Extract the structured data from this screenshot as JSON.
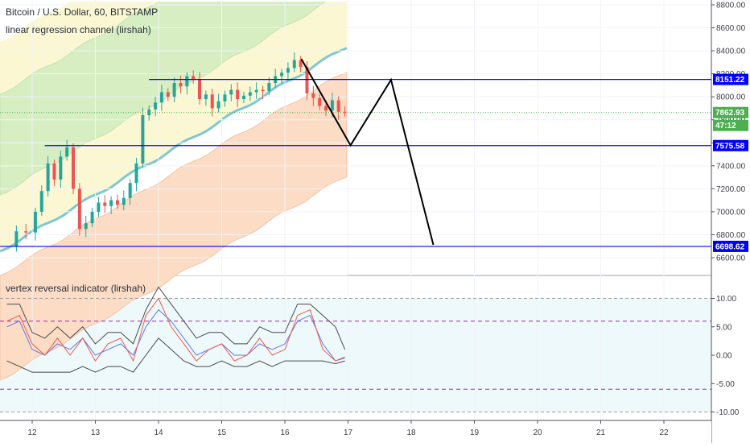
{
  "header": {
    "symbol_line": "Bitcoin / U.S. Dollar, 60, BITSTAMP",
    "indicator_line": "linear regression channel (lirshah)"
  },
  "sub_pane": {
    "title": "vertex reversal indicator (lirshah)"
  },
  "colors": {
    "up": "#26a69a",
    "down": "#ef5350",
    "hline": "#0000ff",
    "regression": "#7ec8d4",
    "upper_band": "#d6eec2",
    "mid_band": "#fbf7d2",
    "lower_band": "#fcdcc4",
    "zigzag": "#000000",
    "osc_blue": "#5b78f0",
    "osc_red": "#f15a4a",
    "osc_envelope": "#4a4a4a",
    "level_dash": "#9c27b0",
    "price_line": "#4caf50"
  },
  "price_tags": {
    "current": "7862.93",
    "countdown": "47:12"
  },
  "chart_data": [
    {
      "type": "candlestick",
      "title": "Bitcoin / U.S. Dollar, 60, BITSTAMP",
      "x_labels": [
        "12",
        "13",
        "14",
        "15",
        "16",
        "17",
        "18",
        "19",
        "20",
        "21",
        "22"
      ],
      "y_ticks": [
        "8800.00",
        "8600.00",
        "8400.00",
        "8200.00",
        "8000.00",
        "7800.00",
        "7600.00",
        "7400.00",
        "7200.00",
        "7000.00",
        "6800.00",
        "6600.00"
      ],
      "ylim": [
        6550,
        8900
      ],
      "horizontal_levels": [
        {
          "label": "8151.22",
          "value": 8151.22
        },
        {
          "label": "7575.58",
          "value": 7575.58
        },
        {
          "label": "6698.62",
          "value": 6698.62
        }
      ],
      "current_price": 7862.93,
      "series": [
        {
          "name": "BTCUSD",
          "points": [
            [
              11.6,
              6700
            ],
            [
              11.75,
              6830
            ],
            [
              11.9,
              6820
            ],
            [
              12.05,
              7000
            ],
            [
              12.15,
              7180
            ],
            [
              12.25,
              7420
            ],
            [
              12.35,
              7280
            ],
            [
              12.45,
              7480
            ],
            [
              12.55,
              7560
            ],
            [
              12.65,
              7200
            ],
            [
              12.75,
              6850
            ],
            [
              12.85,
              6900
            ],
            [
              12.95,
              7000
            ],
            [
              13.05,
              7080
            ],
            [
              13.15,
              7050
            ],
            [
              13.25,
              7100
            ],
            [
              13.35,
              7060
            ],
            [
              13.45,
              7120
            ],
            [
              13.55,
              7250
            ],
            [
              13.65,
              7420
            ],
            [
              13.75,
              7840
            ],
            [
              13.85,
              7890
            ],
            [
              13.95,
              7950
            ],
            [
              14.05,
              8040
            ],
            [
              14.15,
              8000
            ],
            [
              14.25,
              8120
            ],
            [
              14.35,
              8090
            ],
            [
              14.45,
              8180
            ],
            [
              14.55,
              8150
            ],
            [
              14.65,
              7980
            ],
            [
              14.75,
              8020
            ],
            [
              14.85,
              7900
            ],
            [
              14.95,
              7960
            ],
            [
              15.05,
              8020
            ],
            [
              15.15,
              8060
            ],
            [
              15.25,
              7980
            ],
            [
              15.35,
              8010
            ],
            [
              15.45,
              8040
            ],
            [
              15.55,
              8060
            ],
            [
              15.65,
              8050
            ],
            [
              15.75,
              8120
            ],
            [
              15.85,
              8180
            ],
            [
              15.95,
              8210
            ],
            [
              16.05,
              8250
            ],
            [
              16.15,
              8320
            ],
            [
              16.25,
              8260
            ],
            [
              16.35,
              8030
            ],
            [
              16.45,
              7990
            ],
            [
              16.55,
              7920
            ],
            [
              16.65,
              7880
            ],
            [
              16.75,
              7970
            ],
            [
              16.85,
              7870
            ],
            [
              16.95,
              7862.93
            ]
          ]
        },
        {
          "name": "zigzag projection",
          "points": [
            [
              16.26,
              8330
            ],
            [
              17.04,
              7578
            ],
            [
              17.68,
              8148
            ],
            [
              18.35,
              6712
            ]
          ]
        }
      ]
    },
    {
      "type": "line",
      "title": "vertex reversal indicator (lirshah)",
      "y_ticks": [
        "10.00",
        "5.00",
        "0.00",
        "-5.00",
        "-10.00"
      ],
      "ylim": [
        -11,
        12
      ],
      "levels": [
        10,
        6,
        -6,
        -10
      ],
      "x": [
        11.6,
        11.8,
        12.0,
        12.2,
        12.4,
        12.6,
        12.8,
        13.0,
        13.2,
        13.4,
        13.6,
        13.8,
        14.0,
        14.2,
        14.4,
        14.6,
        14.8,
        15.0,
        15.2,
        15.4,
        15.6,
        15.8,
        16.0,
        16.2,
        16.4,
        16.6,
        16.8,
        16.95
      ],
      "series": [
        {
          "name": "",
          "values": [
            5,
            6,
            1,
            0,
            2,
            1,
            3,
            0,
            1,
            2,
            0,
            5,
            8,
            6,
            3,
            0,
            1,
            2,
            0,
            0,
            2,
            1,
            2,
            6,
            7,
            2,
            -1,
            -0.5
          ]
        },
        {
          "name": "",
          "values": [
            6,
            7,
            2,
            0,
            3,
            0,
            3,
            -1,
            2,
            3,
            -1,
            7,
            10,
            5,
            2,
            -1,
            1,
            2,
            -1,
            0,
            3,
            0,
            1,
            7,
            8,
            1,
            -1,
            -0.3
          ]
        },
        {
          "name": "",
          "values": [
            9,
            9,
            4,
            3,
            5,
            3,
            5,
            2,
            4,
            4,
            2,
            8,
            12,
            9,
            6,
            3,
            4,
            4,
            2,
            2,
            5,
            4,
            4,
            9,
            9,
            7,
            5,
            1
          ]
        },
        {
          "name": "",
          "values": [
            -1,
            -2,
            -3,
            -3,
            -3,
            -3,
            -2,
            -3,
            -2,
            -2,
            -3,
            0,
            3,
            1,
            -1,
            -2,
            -2,
            -1,
            -2,
            -2,
            -1,
            -2,
            -1,
            -1,
            -1,
            -1,
            -1.5,
            -1
          ]
        }
      ]
    }
  ]
}
